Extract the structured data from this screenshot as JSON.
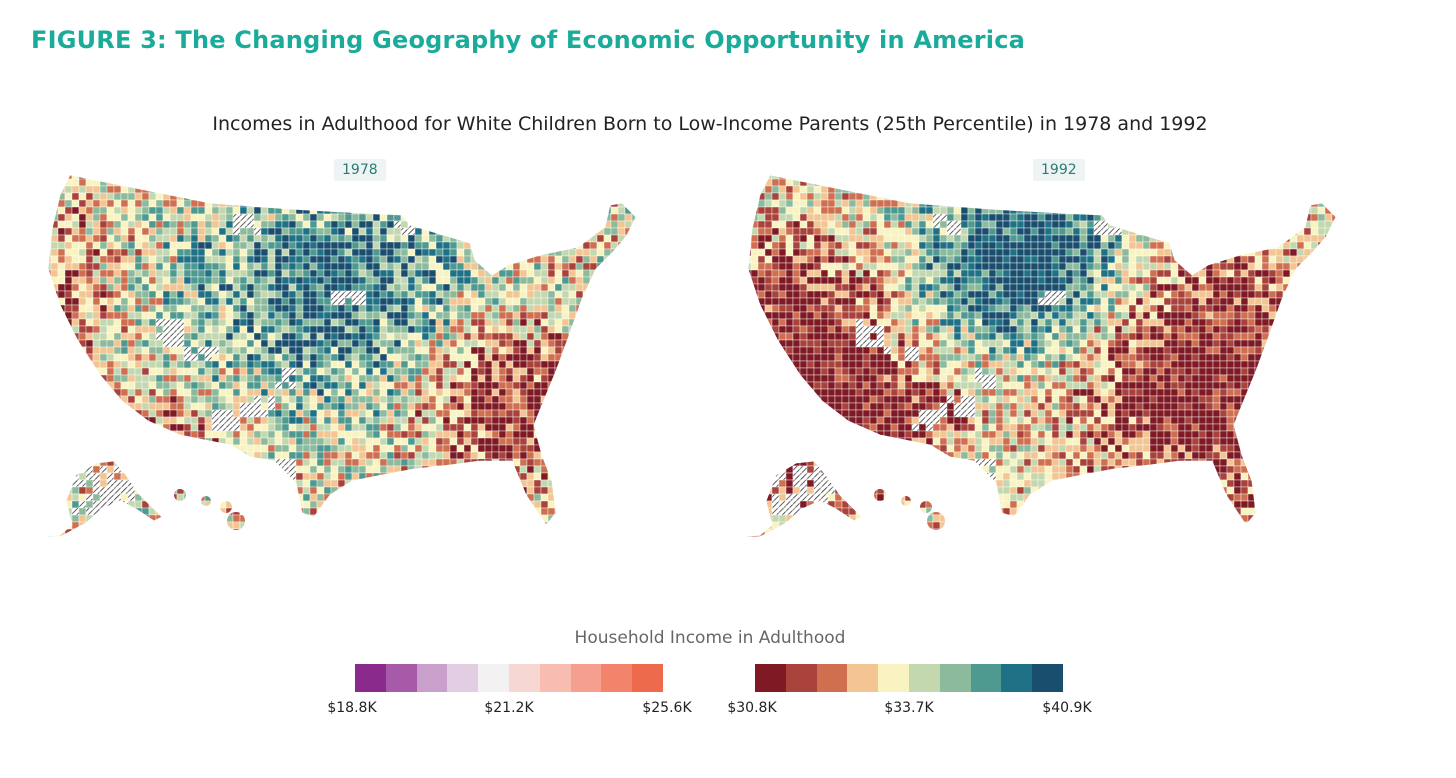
{
  "figure": {
    "title": "FIGURE 3: The Changing Geography of Economic Opportunity in America",
    "subtitle": "Incomes in Adulthood for White Children Born to Low-Income Parents (25th Percentile) in 1978 and 1992"
  },
  "maps": [
    {
      "year": "1978",
      "tendency": "mixed, lower in South and West coast"
    },
    {
      "year": "1992",
      "tendency": "high in Great Plains, low in South and West"
    }
  ],
  "legend": {
    "title": "Household Income in Adulthood",
    "low_scale": {
      "colors": [
        "#8a2a8c",
        "#a65aa8",
        "#c9a0cc",
        "#e2cde3",
        "#f3f1f1",
        "#f6d7d2",
        "#f8bcb1",
        "#f5a08e",
        "#f2846c",
        "#ee6a4d"
      ],
      "ticks": [
        "$18.8K",
        "$21.2K",
        "$25.6K"
      ]
    },
    "high_scale": {
      "colors": [
        "#7f1a24",
        "#a8423a",
        "#cf6f4f",
        "#f2c592",
        "#f8f3c0",
        "#c4d8b0",
        "#8bbb9c",
        "#4f9a90",
        "#1f7185",
        "#1a4e6f"
      ],
      "ticks": [
        "$30.8K",
        "$33.7K",
        "$40.9K"
      ]
    }
  },
  "colors": {
    "title": "#1aab9b",
    "hatch": "#333333"
  }
}
